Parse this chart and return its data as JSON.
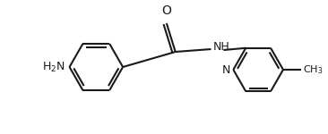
{
  "bg_color": "#ffffff",
  "line_color": "#1a1a1a",
  "line_width": 1.5,
  "font_size": 9,
  "figsize": [
    3.66,
    1.5
  ],
  "dpi": 100,
  "xlim": [
    0,
    366
  ],
  "ylim": [
    0,
    150
  ]
}
